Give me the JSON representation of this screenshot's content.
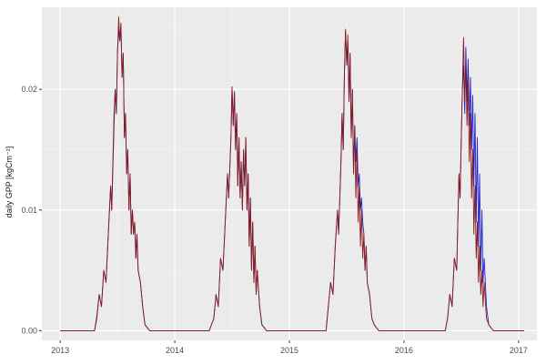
{
  "figure": {
    "background": "#FFFFFF",
    "panel_background": "#EBEBEB",
    "grid_major_color": "#FFFFFF",
    "grid_minor_color": "#F4F4F4",
    "tick_mark_color": "#333333",
    "tick_text_color": "#4D4D4D"
  },
  "chart_data": {
    "type": "line",
    "title": "",
    "xlabel": "",
    "ylabel": "daily GPP [kgCm⁻²]",
    "grid": true,
    "legend": "none",
    "xlim": [
      2012.84,
      2017.16
    ],
    "ylim": [
      -0.0008,
      0.0268
    ],
    "x_ticks": [
      {
        "value": 2013,
        "label": "2013"
      },
      {
        "value": 2014,
        "label": "2014"
      },
      {
        "value": 2015,
        "label": "2015"
      },
      {
        "value": 2016,
        "label": "2016"
      },
      {
        "value": 2017,
        "label": "2017"
      }
    ],
    "x_minor_ticks": [
      2013.5,
      2014.5,
      2015.5,
      2016.5
    ],
    "y_ticks": [
      {
        "value": 0.0,
        "label": "0.00"
      },
      {
        "value": 0.01,
        "label": "0.01"
      },
      {
        "value": 0.02,
        "label": "0.02"
      }
    ],
    "y_minor_ticks": [
      0.005,
      0.015,
      0.025
    ],
    "series": [
      {
        "name": "blue",
        "color": "#2323CC"
      },
      {
        "name": "dark-red",
        "color": "#8B1A1A"
      }
    ],
    "points_note": "rows are [x_year_fraction, blue_value, dark_red_value]",
    "points": [
      [
        2013.0,
        0,
        0
      ],
      [
        2013.3,
        0,
        0
      ],
      [
        2013.32,
        0.0012,
        0.001
      ],
      [
        2013.34,
        0.003,
        0.003
      ],
      [
        2013.36,
        0.002,
        0.002
      ],
      [
        2013.38,
        0.005,
        0.005
      ],
      [
        2013.4,
        0.004,
        0.004
      ],
      [
        2013.42,
        0.008,
        0.008
      ],
      [
        2013.44,
        0.012,
        0.012
      ],
      [
        2013.45,
        0.01,
        0.01
      ],
      [
        2013.47,
        0.018,
        0.017
      ],
      [
        2013.48,
        0.02,
        0.02
      ],
      [
        2013.49,
        0.018,
        0.018
      ],
      [
        2013.5,
        0.023,
        0.023
      ],
      [
        2013.51,
        0.025,
        0.026
      ],
      [
        2013.52,
        0.024,
        0.024
      ],
      [
        2013.53,
        0.0252,
        0.0255
      ],
      [
        2013.54,
        0.021,
        0.021
      ],
      [
        2013.55,
        0.023,
        0.023
      ],
      [
        2013.56,
        0.016,
        0.016
      ],
      [
        2013.57,
        0.018,
        0.018
      ],
      [
        2013.58,
        0.013,
        0.013
      ],
      [
        2013.59,
        0.015,
        0.015
      ],
      [
        2013.6,
        0.01,
        0.01
      ],
      [
        2013.61,
        0.013,
        0.013
      ],
      [
        2013.62,
        0.008,
        0.008
      ],
      [
        2013.63,
        0.01,
        0.01
      ],
      [
        2013.64,
        0.008,
        0.008
      ],
      [
        2013.65,
        0.009,
        0.009
      ],
      [
        2013.66,
        0.006,
        0.006
      ],
      [
        2013.67,
        0.008,
        0.008
      ],
      [
        2013.68,
        0.005,
        0.005
      ],
      [
        2013.7,
        0.004,
        0.004
      ],
      [
        2013.72,
        0.002,
        0.002
      ],
      [
        2013.74,
        0.0005,
        0.0005
      ],
      [
        2013.78,
        0,
        0
      ],
      [
        2014.3,
        0,
        0
      ],
      [
        2014.34,
        0.001,
        0.001
      ],
      [
        2014.36,
        0.003,
        0.003
      ],
      [
        2014.38,
        0.002,
        0.002
      ],
      [
        2014.4,
        0.006,
        0.006
      ],
      [
        2014.42,
        0.005,
        0.005
      ],
      [
        2014.44,
        0.009,
        0.009
      ],
      [
        2014.46,
        0.013,
        0.013
      ],
      [
        2014.47,
        0.011,
        0.011
      ],
      [
        2014.49,
        0.016,
        0.016
      ],
      [
        2014.5,
        0.0202,
        0.0202
      ],
      [
        2014.51,
        0.017,
        0.017
      ],
      [
        2014.52,
        0.0198,
        0.0198
      ],
      [
        2014.53,
        0.015,
        0.015
      ],
      [
        2014.54,
        0.018,
        0.018
      ],
      [
        2014.55,
        0.012,
        0.012
      ],
      [
        2014.56,
        0.016,
        0.016
      ],
      [
        2014.57,
        0.011,
        0.011
      ],
      [
        2014.58,
        0.014,
        0.014
      ],
      [
        2014.59,
        0.01,
        0.01
      ],
      [
        2014.6,
        0.015,
        0.015
      ],
      [
        2014.61,
        0.012,
        0.012
      ],
      [
        2014.62,
        0.016,
        0.016
      ],
      [
        2014.63,
        0.01,
        0.01
      ],
      [
        2014.64,
        0.013,
        0.013
      ],
      [
        2014.65,
        0.007,
        0.007
      ],
      [
        2014.66,
        0.011,
        0.011
      ],
      [
        2014.67,
        0.005,
        0.005
      ],
      [
        2014.68,
        0.009,
        0.009
      ],
      [
        2014.69,
        0.004,
        0.004
      ],
      [
        2014.7,
        0.007,
        0.007
      ],
      [
        2014.71,
        0.003,
        0.003
      ],
      [
        2014.72,
        0.005,
        0.005
      ],
      [
        2014.74,
        0.002,
        0.002
      ],
      [
        2014.76,
        0.0005,
        0.0005
      ],
      [
        2014.8,
        0,
        0
      ],
      [
        2015.32,
        0,
        0
      ],
      [
        2015.34,
        0.002,
        0.002
      ],
      [
        2015.36,
        0.004,
        0.004
      ],
      [
        2015.38,
        0.003,
        0.003
      ],
      [
        2015.4,
        0.007,
        0.007
      ],
      [
        2015.42,
        0.01,
        0.01
      ],
      [
        2015.43,
        0.008,
        0.008
      ],
      [
        2015.45,
        0.014,
        0.014
      ],
      [
        2015.46,
        0.018,
        0.018
      ],
      [
        2015.47,
        0.015,
        0.015
      ],
      [
        2015.48,
        0.021,
        0.021
      ],
      [
        2015.49,
        0.0248,
        0.025
      ],
      [
        2015.5,
        0.022,
        0.022
      ],
      [
        2015.51,
        0.024,
        0.0245
      ],
      [
        2015.52,
        0.019,
        0.019
      ],
      [
        2015.53,
        0.023,
        0.023
      ],
      [
        2015.54,
        0.016,
        0.016
      ],
      [
        2015.55,
        0.02,
        0.02
      ],
      [
        2015.56,
        0.013,
        0.013
      ],
      [
        2015.57,
        0.017,
        0.017
      ],
      [
        2015.58,
        0.014,
        0.011
      ],
      [
        2015.59,
        0.016,
        0.015
      ],
      [
        2015.6,
        0.012,
        0.009
      ],
      [
        2015.61,
        0.013,
        0.012
      ],
      [
        2015.62,
        0.01,
        0.007
      ],
      [
        2015.63,
        0.011,
        0.01
      ],
      [
        2015.64,
        0.009,
        0.006
      ],
      [
        2015.65,
        0.008,
        0.008
      ],
      [
        2015.66,
        0.005,
        0.005
      ],
      [
        2015.67,
        0.007,
        0.007
      ],
      [
        2015.68,
        0.004,
        0.004
      ],
      [
        2015.7,
        0.003,
        0.003
      ],
      [
        2015.72,
        0.001,
        0.001
      ],
      [
        2015.74,
        0.0005,
        0.0005
      ],
      [
        2015.78,
        0,
        0
      ],
      [
        2016.36,
        0,
        0
      ],
      [
        2016.38,
        0.001,
        0.001
      ],
      [
        2016.4,
        0.003,
        0.003
      ],
      [
        2016.42,
        0.002,
        0.002
      ],
      [
        2016.44,
        0.006,
        0.006
      ],
      [
        2016.46,
        0.005,
        0.005
      ],
      [
        2016.47,
        0.009,
        0.009
      ],
      [
        2016.48,
        0.013,
        0.013
      ],
      [
        2016.49,
        0.011,
        0.011
      ],
      [
        2016.5,
        0.016,
        0.016
      ],
      [
        2016.51,
        0.02,
        0.02
      ],
      [
        2016.52,
        0.022,
        0.0243
      ],
      [
        2016.53,
        0.018,
        0.019
      ],
      [
        2016.54,
        0.0235,
        0.022
      ],
      [
        2016.55,
        0.019,
        0.017
      ],
      [
        2016.56,
        0.0225,
        0.021
      ],
      [
        2016.57,
        0.017,
        0.014
      ],
      [
        2016.58,
        0.021,
        0.018
      ],
      [
        2016.59,
        0.015,
        0.011
      ],
      [
        2016.6,
        0.0195,
        0.015
      ],
      [
        2016.61,
        0.012,
        0.008
      ],
      [
        2016.62,
        0.018,
        0.012
      ],
      [
        2016.63,
        0.009,
        0.006
      ],
      [
        2016.64,
        0.016,
        0.009
      ],
      [
        2016.65,
        0.007,
        0.004
      ],
      [
        2016.66,
        0.013,
        0.007
      ],
      [
        2016.67,
        0.005,
        0.003
      ],
      [
        2016.68,
        0.01,
        0.005
      ],
      [
        2016.69,
        0.004,
        0.002
      ],
      [
        2016.7,
        0.006,
        0.004
      ],
      [
        2016.72,
        0.002,
        0.001
      ],
      [
        2016.74,
        0.0005,
        0.0005
      ],
      [
        2016.78,
        0,
        0
      ],
      [
        2017.05,
        0,
        0
      ]
    ]
  }
}
